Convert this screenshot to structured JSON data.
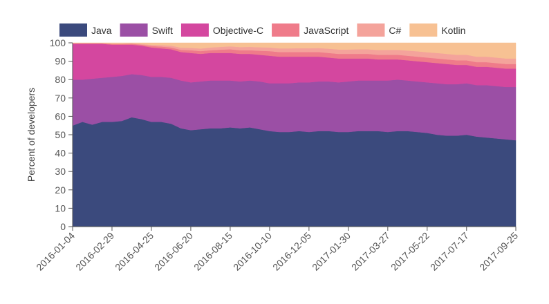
{
  "chart_data": {
    "type": "area",
    "stacked": true,
    "ylabel": "Percent of developers",
    "xlabel": "",
    "ylim": [
      0,
      100
    ],
    "yticks": [
      0,
      10,
      20,
      30,
      40,
      50,
      60,
      70,
      80,
      90,
      100
    ],
    "legend_position": "top",
    "x_start": "2016-01-04",
    "x_end": "2017-09-25",
    "xtick_labels": [
      "2016-01-04",
      "2016-02-29",
      "2016-04-25",
      "2016-06-20",
      "2016-08-15",
      "2016-10-10",
      "2016-12-05",
      "2017-01-30",
      "2017-03-27",
      "2017-05-22",
      "2017-07-17",
      "2017-09-25"
    ],
    "series": [
      {
        "name": "Java",
        "color": "#3b4a7d",
        "points": [
          [
            "2016-01-04",
            55
          ],
          [
            "2016-01-18",
            57
          ],
          [
            "2016-02-01",
            55.5
          ],
          [
            "2016-02-15",
            57
          ],
          [
            "2016-02-29",
            57
          ],
          [
            "2016-03-14",
            57.5
          ],
          [
            "2016-03-28",
            59.5
          ],
          [
            "2016-04-11",
            58.5
          ],
          [
            "2016-04-25",
            57
          ],
          [
            "2016-05-09",
            57
          ],
          [
            "2016-05-23",
            56
          ],
          [
            "2016-06-06",
            53.5
          ],
          [
            "2016-06-20",
            52.5
          ],
          [
            "2016-07-04",
            53
          ],
          [
            "2016-07-18",
            53.5
          ],
          [
            "2016-08-01",
            53.5
          ],
          [
            "2016-08-15",
            54
          ],
          [
            "2016-08-29",
            53.5
          ],
          [
            "2016-09-12",
            54
          ],
          [
            "2016-09-26",
            53
          ],
          [
            "2016-10-10",
            52
          ],
          [
            "2016-10-24",
            51.5
          ],
          [
            "2016-11-07",
            51.5
          ],
          [
            "2016-11-21",
            52
          ],
          [
            "2016-12-05",
            51.5
          ],
          [
            "2016-12-19",
            52
          ],
          [
            "2017-01-02",
            52
          ],
          [
            "2017-01-16",
            51.5
          ],
          [
            "2017-01-30",
            51.5
          ],
          [
            "2017-02-13",
            52
          ],
          [
            "2017-02-27",
            52
          ],
          [
            "2017-03-13",
            52
          ],
          [
            "2017-03-27",
            51.5
          ],
          [
            "2017-04-10",
            52
          ],
          [
            "2017-04-24",
            52
          ],
          [
            "2017-05-08",
            51.5
          ],
          [
            "2017-05-22",
            51
          ],
          [
            "2017-06-05",
            50
          ],
          [
            "2017-06-19",
            49.5
          ],
          [
            "2017-07-03",
            49.5
          ],
          [
            "2017-07-17",
            50
          ],
          [
            "2017-07-31",
            49
          ],
          [
            "2017-08-14",
            48.5
          ],
          [
            "2017-08-28",
            48
          ],
          [
            "2017-09-11",
            47.5
          ],
          [
            "2017-09-25",
            47
          ]
        ]
      },
      {
        "name": "Swift",
        "color": "#9b4fa5",
        "points": [
          [
            "2016-01-04",
            25
          ],
          [
            "2016-01-18",
            23
          ],
          [
            "2016-02-01",
            25
          ],
          [
            "2016-02-15",
            24
          ],
          [
            "2016-02-29",
            24.5
          ],
          [
            "2016-03-14",
            24.5
          ],
          [
            "2016-03-28",
            23.5
          ],
          [
            "2016-04-11",
            24
          ],
          [
            "2016-04-25",
            24.5
          ],
          [
            "2016-05-09",
            24.5
          ],
          [
            "2016-05-23",
            25
          ],
          [
            "2016-06-06",
            26
          ],
          [
            "2016-06-20",
            26
          ],
          [
            "2016-07-04",
            26
          ],
          [
            "2016-07-18",
            26
          ],
          [
            "2016-08-01",
            26
          ],
          [
            "2016-08-15",
            25.5
          ],
          [
            "2016-08-29",
            25.5
          ],
          [
            "2016-09-12",
            25.5
          ],
          [
            "2016-09-26",
            26
          ],
          [
            "2016-10-10",
            26
          ],
          [
            "2016-10-24",
            26.5
          ],
          [
            "2016-11-07",
            26.5
          ],
          [
            "2016-11-21",
            26.5
          ],
          [
            "2016-12-05",
            27
          ],
          [
            "2016-12-19",
            27
          ],
          [
            "2017-01-02",
            27
          ],
          [
            "2017-01-16",
            27
          ],
          [
            "2017-01-30",
            27.5
          ],
          [
            "2017-02-13",
            27.5
          ],
          [
            "2017-02-27",
            27.5
          ],
          [
            "2017-03-13",
            27.5
          ],
          [
            "2017-03-27",
            28
          ],
          [
            "2017-04-10",
            28
          ],
          [
            "2017-04-24",
            27.5
          ],
          [
            "2017-05-08",
            27.5
          ],
          [
            "2017-05-22",
            27.5
          ],
          [
            "2017-06-05",
            28
          ],
          [
            "2017-06-19",
            28
          ],
          [
            "2017-07-03",
            28
          ],
          [
            "2017-07-17",
            28
          ],
          [
            "2017-07-31",
            28
          ],
          [
            "2017-08-14",
            28.5
          ],
          [
            "2017-08-28",
            28.5
          ],
          [
            "2017-09-11",
            28.5
          ],
          [
            "2017-09-25",
            29
          ]
        ]
      },
      {
        "name": "Objective-C",
        "color": "#d4479f",
        "points": [
          [
            "2016-01-04",
            19.5
          ],
          [
            "2016-01-18",
            19.5
          ],
          [
            "2016-02-01",
            19
          ],
          [
            "2016-02-15",
            18.5
          ],
          [
            "2016-02-29",
            17.5
          ],
          [
            "2016-03-14",
            17
          ],
          [
            "2016-03-28",
            16
          ],
          [
            "2016-04-11",
            16
          ],
          [
            "2016-04-25",
            16
          ],
          [
            "2016-05-09",
            15.5
          ],
          [
            "2016-05-23",
            15.5
          ],
          [
            "2016-06-06",
            15.5
          ],
          [
            "2016-06-20",
            16
          ],
          [
            "2016-07-04",
            15
          ],
          [
            "2016-07-18",
            15
          ],
          [
            "2016-08-01",
            15
          ],
          [
            "2016-08-15",
            15
          ],
          [
            "2016-08-29",
            15
          ],
          [
            "2016-09-12",
            14.5
          ],
          [
            "2016-09-26",
            14.5
          ],
          [
            "2016-10-10",
            15
          ],
          [
            "2016-10-24",
            14.5
          ],
          [
            "2016-11-07",
            14.5
          ],
          [
            "2016-11-21",
            14
          ],
          [
            "2016-12-05",
            14
          ],
          [
            "2016-12-19",
            13.5
          ],
          [
            "2017-01-02",
            13
          ],
          [
            "2017-01-16",
            13
          ],
          [
            "2017-01-30",
            12.5
          ],
          [
            "2017-02-13",
            12
          ],
          [
            "2017-02-27",
            12
          ],
          [
            "2017-03-13",
            11.5
          ],
          [
            "2017-03-27",
            11.5
          ],
          [
            "2017-04-10",
            11
          ],
          [
            "2017-04-24",
            11
          ],
          [
            "2017-05-08",
            11
          ],
          [
            "2017-05-22",
            11
          ],
          [
            "2017-06-05",
            11
          ],
          [
            "2017-06-19",
            11
          ],
          [
            "2017-07-03",
            10.5
          ],
          [
            "2017-07-17",
            10
          ],
          [
            "2017-07-31",
            10
          ],
          [
            "2017-08-14",
            10
          ],
          [
            "2017-08-28",
            10
          ],
          [
            "2017-09-11",
            10
          ],
          [
            "2017-09-25",
            10
          ]
        ]
      },
      {
        "name": "JavaScript",
        "color": "#ef7b8a",
        "points": [
          [
            "2016-01-04",
            0.3
          ],
          [
            "2016-01-18",
            0.3
          ],
          [
            "2016-02-01",
            0.3
          ],
          [
            "2016-02-15",
            0.3
          ],
          [
            "2016-02-29",
            0.4
          ],
          [
            "2016-03-14",
            0.4
          ],
          [
            "2016-03-28",
            0.5
          ],
          [
            "2016-04-11",
            0.5
          ],
          [
            "2016-04-25",
            0.8
          ],
          [
            "2016-05-09",
            1
          ],
          [
            "2016-05-23",
            1
          ],
          [
            "2016-06-06",
            1.2
          ],
          [
            "2016-06-20",
            1.5
          ],
          [
            "2016-07-04",
            1.5
          ],
          [
            "2016-07-18",
            1.5
          ],
          [
            "2016-08-01",
            1.8
          ],
          [
            "2016-08-15",
            2
          ],
          [
            "2016-08-29",
            2
          ],
          [
            "2016-09-12",
            2
          ],
          [
            "2016-09-26",
            2.2
          ],
          [
            "2016-10-10",
            2.5
          ],
          [
            "2016-10-24",
            2.5
          ],
          [
            "2016-11-07",
            2.5
          ],
          [
            "2016-11-21",
            2.5
          ],
          [
            "2016-12-05",
            2.5
          ],
          [
            "2016-12-19",
            2.5
          ],
          [
            "2017-01-02",
            2.5
          ],
          [
            "2017-01-16",
            2.5
          ],
          [
            "2017-01-30",
            2.5
          ],
          [
            "2017-02-13",
            2.5
          ],
          [
            "2017-02-27",
            2.5
          ],
          [
            "2017-03-13",
            2.5
          ],
          [
            "2017-03-27",
            2.5
          ],
          [
            "2017-04-10",
            2.5
          ],
          [
            "2017-04-24",
            2.5
          ],
          [
            "2017-05-08",
            2.5
          ],
          [
            "2017-05-22",
            2.5
          ],
          [
            "2017-06-05",
            2.5
          ],
          [
            "2017-06-19",
            2.5
          ],
          [
            "2017-07-03",
            2.5
          ],
          [
            "2017-07-17",
            2.5
          ],
          [
            "2017-07-31",
            2.5
          ],
          [
            "2017-08-14",
            2.5
          ],
          [
            "2017-08-28",
            2.5
          ],
          [
            "2017-09-11",
            2.5
          ],
          [
            "2017-09-25",
            2.5
          ]
        ]
      },
      {
        "name": "C#",
        "color": "#f4a39b",
        "points": [
          [
            "2016-01-04",
            0.1
          ],
          [
            "2016-01-18",
            0.1
          ],
          [
            "2016-02-01",
            0.1
          ],
          [
            "2016-02-15",
            0.1
          ],
          [
            "2016-02-29",
            0.2
          ],
          [
            "2016-03-14",
            0.2
          ],
          [
            "2016-03-28",
            0.3
          ],
          [
            "2016-04-11",
            0.4
          ],
          [
            "2016-04-25",
            0.6
          ],
          [
            "2016-05-09",
            0.8
          ],
          [
            "2016-05-23",
            1
          ],
          [
            "2016-06-06",
            1.2
          ],
          [
            "2016-06-20",
            1.3
          ],
          [
            "2016-07-04",
            1.4
          ],
          [
            "2016-07-18",
            1.5
          ],
          [
            "2016-08-01",
            1.5
          ],
          [
            "2016-08-15",
            1.6
          ],
          [
            "2016-08-29",
            1.7
          ],
          [
            "2016-09-12",
            1.8
          ],
          [
            "2016-09-26",
            1.9
          ],
          [
            "2016-10-10",
            2
          ],
          [
            "2016-10-24",
            2
          ],
          [
            "2016-11-07",
            2
          ],
          [
            "2016-11-21",
            2.1
          ],
          [
            "2016-12-05",
            2.1
          ],
          [
            "2016-12-19",
            2.2
          ],
          [
            "2017-01-02",
            2.3
          ],
          [
            "2017-01-16",
            2.4
          ],
          [
            "2017-01-30",
            2.4
          ],
          [
            "2017-02-13",
            2.5
          ],
          [
            "2017-02-27",
            2.5
          ],
          [
            "2017-03-13",
            2.6
          ],
          [
            "2017-03-27",
            2.7
          ],
          [
            "2017-04-10",
            2.7
          ],
          [
            "2017-04-24",
            2.8
          ],
          [
            "2017-05-08",
            2.9
          ],
          [
            "2017-05-22",
            2.9
          ],
          [
            "2017-06-05",
            3
          ],
          [
            "2017-06-19",
            3
          ],
          [
            "2017-07-03",
            3
          ],
          [
            "2017-07-17",
            3
          ],
          [
            "2017-07-31",
            3
          ],
          [
            "2017-08-14",
            3
          ],
          [
            "2017-08-28",
            3
          ],
          [
            "2017-09-11",
            3
          ],
          [
            "2017-09-25",
            3
          ]
        ]
      },
      {
        "name": "Kotlin",
        "color": "#f7c193",
        "points": [
          [
            "2016-01-04",
            0.1
          ],
          [
            "2016-01-18",
            0.1
          ],
          [
            "2016-02-01",
            0.1
          ],
          [
            "2016-02-15",
            0.1
          ],
          [
            "2016-02-29",
            0.4
          ],
          [
            "2016-03-14",
            0.8
          ],
          [
            "2016-03-28",
            0.2
          ],
          [
            "2016-04-11",
            0.6
          ],
          [
            "2016-04-25",
            1.1
          ],
          [
            "2016-05-09",
            1.2
          ],
          [
            "2016-05-23",
            1.5
          ],
          [
            "2016-06-06",
            2.6
          ],
          [
            "2016-06-20",
            2.7
          ],
          [
            "2016-07-04",
            3.1
          ],
          [
            "2016-07-18",
            2.5
          ],
          [
            "2016-08-01",
            2.2
          ],
          [
            "2016-08-15",
            1.9
          ],
          [
            "2016-08-29",
            2.3
          ],
          [
            "2016-09-12",
            2.2
          ],
          [
            "2016-09-26",
            2.4
          ],
          [
            "2016-10-10",
            2.5
          ],
          [
            "2016-10-24",
            3
          ],
          [
            "2016-11-07",
            3
          ],
          [
            "2016-11-21",
            2.9
          ],
          [
            "2016-12-05",
            2.9
          ],
          [
            "2016-12-19",
            2.8
          ],
          [
            "2017-01-02",
            3.2
          ],
          [
            "2017-01-16",
            3.6
          ],
          [
            "2017-01-30",
            3.6
          ],
          [
            "2017-02-13",
            3.5
          ],
          [
            "2017-02-27",
            3.5
          ],
          [
            "2017-03-13",
            3.9
          ],
          [
            "2017-03-27",
            3.8
          ],
          [
            "2017-04-10",
            3.8
          ],
          [
            "2017-04-24",
            4.2
          ],
          [
            "2017-05-08",
            4.6
          ],
          [
            "2017-05-22",
            5.1
          ],
          [
            "2017-06-05",
            5.5
          ],
          [
            "2017-06-19",
            6
          ],
          [
            "2017-07-03",
            6.5
          ],
          [
            "2017-07-17",
            6.5
          ],
          [
            "2017-07-31",
            7.5
          ],
          [
            "2017-08-14",
            7.5
          ],
          [
            "2017-08-28",
            8
          ],
          [
            "2017-09-11",
            8.5
          ],
          [
            "2017-09-25",
            8.5
          ]
        ]
      }
    ]
  }
}
